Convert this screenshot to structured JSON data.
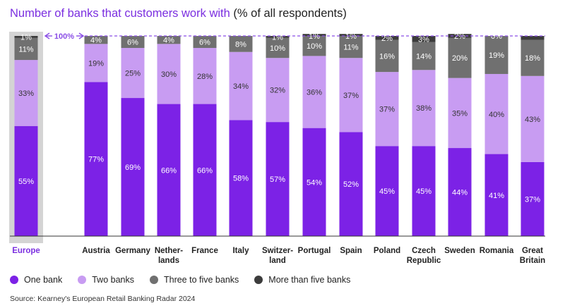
{
  "title": {
    "main": "Number of banks that customers work with",
    "suffix": "(% of all respondents)"
  },
  "colors": {
    "one_bank": "#7c22e6",
    "two_banks": "#c89cf2",
    "three_to_five": "#707070",
    "more_than_five": "#3c3c3c",
    "highlight_bg": "#d4d4d4",
    "highlight_label": "#7b2fe0",
    "ref_line": "#8a4ee6"
  },
  "reference_line_label": "100%",
  "legend": [
    {
      "key": "one_bank",
      "label": "One bank"
    },
    {
      "key": "two_banks",
      "label": "Two banks"
    },
    {
      "key": "three_to_five",
      "label": "Three to five banks"
    },
    {
      "key": "more_than_five",
      "label": "More than five banks"
    }
  ],
  "source": "Source: Kearney's European Retail Banking Radar 2024",
  "chart_data": {
    "type": "bar",
    "stacked": true,
    "highlighted_category": "Europe",
    "categories": [
      [
        "Europe"
      ],
      [
        "Austria"
      ],
      [
        "Germany"
      ],
      [
        "Nether-",
        "lands"
      ],
      [
        "France"
      ],
      [
        "Italy"
      ],
      [
        "Switzer-",
        "land"
      ],
      [
        "Portugal"
      ],
      [
        "Spain"
      ],
      [
        "Poland"
      ],
      [
        "Czech",
        "Republic"
      ],
      [
        "Sweden"
      ],
      [
        "Romania"
      ],
      [
        "Great",
        "Britain"
      ]
    ],
    "series": [
      {
        "name": "One bank",
        "key": "one_bank",
        "values": [
          55,
          77,
          69,
          66,
          66,
          58,
          57,
          54,
          52,
          45,
          45,
          44,
          41,
          37
        ],
        "labels": [
          "55%",
          "77%",
          "69%",
          "66%",
          "66%",
          "58%",
          "57%",
          "54%",
          "52%",
          "45%",
          "45%",
          "44%",
          "41%",
          "37%"
        ]
      },
      {
        "name": "Two banks",
        "key": "two_banks",
        "values": [
          33,
          19,
          25,
          30,
          28,
          34,
          32,
          36,
          37,
          37,
          38,
          35,
          40,
          43
        ],
        "labels": [
          "33%",
          "19%",
          "25%",
          "30%",
          "28%",
          "34%",
          "32%",
          "36%",
          "37%",
          "37%",
          "38%",
          "35%",
          "40%",
          "43%"
        ]
      },
      {
        "name": "Three to five banks",
        "key": "three_to_five",
        "values": [
          11,
          4,
          6,
          4,
          6,
          8,
          10,
          10,
          11,
          16,
          14,
          20,
          19,
          18
        ],
        "labels": [
          "11%",
          "4%",
          "6%",
          "4%",
          "6%",
          "8%",
          "10%",
          "10%",
          "11%",
          "16%",
          "14%",
          "20%",
          "19%",
          "18%"
        ]
      },
      {
        "name": "More than five banks",
        "key": "more_than_five",
        "values": [
          1,
          0,
          0,
          0,
          0,
          0,
          1,
          1,
          1,
          2,
          3,
          2,
          0,
          2
        ],
        "labels": [
          "1%",
          "",
          "",
          "",
          "",
          "",
          "1%",
          "1%",
          "1%",
          "2%",
          "3%",
          "2%",
          "0%",
          ""
        ]
      }
    ],
    "ylim": [
      0,
      100
    ]
  }
}
